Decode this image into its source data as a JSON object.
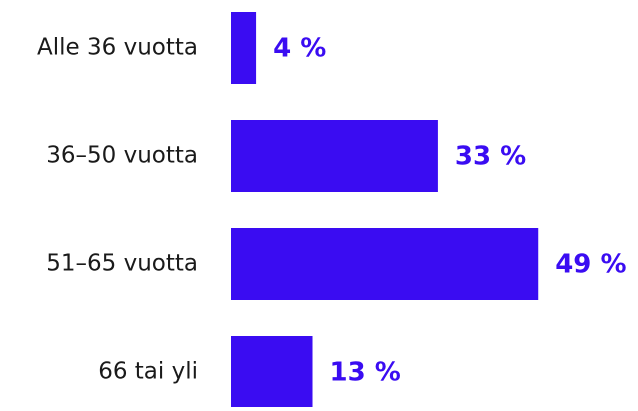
{
  "chart_data": {
    "type": "barh",
    "categories": [
      "Alle 36 vuotta",
      "36–50 vuotta",
      "51–65 vuotta",
      "66 tai yli"
    ],
    "values": [
      4,
      33,
      49,
      13
    ],
    "value_labels": [
      "4 %",
      "33 %",
      "49 %",
      "13 %"
    ],
    "color": "#3a0cf2"
  }
}
